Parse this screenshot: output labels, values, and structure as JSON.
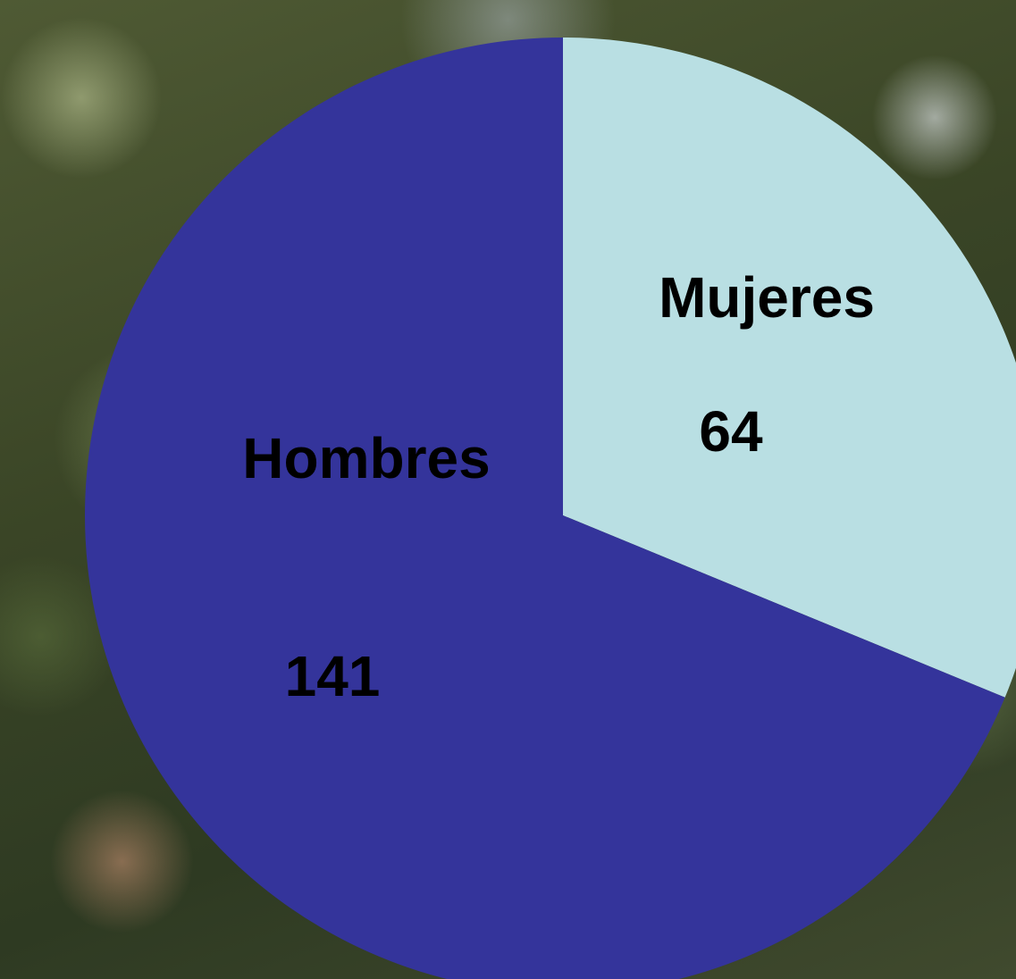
{
  "chart_data": {
    "type": "pie",
    "categories": [
      "Mujeres",
      "Hombres"
    ],
    "values": [
      64,
      141
    ],
    "colors": [
      "#b9dfe3",
      "#34349b"
    ]
  }
}
